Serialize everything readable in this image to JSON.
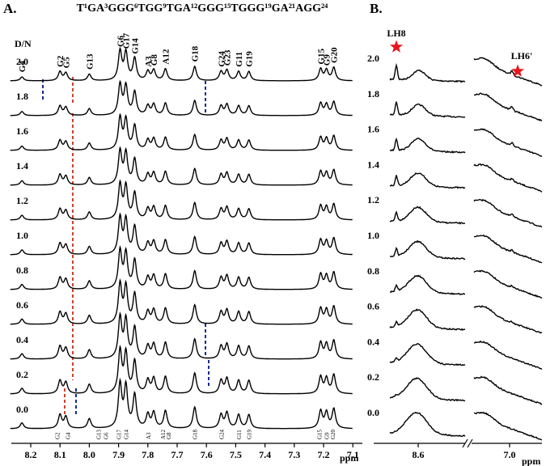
{
  "panels": [
    {
      "label": "A.",
      "title": "T¹GA³GGG⁶TGG⁹TGA¹²GGG¹⁵TGGG¹⁹GA²¹AGG²⁴",
      "dn_header": "D/N",
      "traces": [
        "2.0",
        "1.8",
        "1.6",
        "1.4",
        "1.2",
        "1.0",
        "0.8",
        "0.6",
        "0.4",
        "0.2",
        "0.0"
      ],
      "peaks": [
        {
          "label": "G4",
          "ppm": 8.23,
          "height": 6
        },
        {
          "label": "G2",
          "ppm": 8.1,
          "height": 14
        },
        {
          "label": "G5",
          "ppm": 8.08,
          "height": 12
        },
        {
          "label": "G13",
          "ppm": 8.0,
          "height": 10
        },
        {
          "label": "G6",
          "ppm": 7.895,
          "height": 45
        },
        {
          "label": "G17",
          "ppm": 7.875,
          "height": 42
        },
        {
          "label": "G14",
          "ppm": 7.845,
          "height": 34
        },
        {
          "label": "A3",
          "ppm": 7.8,
          "height": 14
        },
        {
          "label": "G8",
          "ppm": 7.78,
          "height": 16
        },
        {
          "label": "A12",
          "ppm": 7.74,
          "height": 18
        },
        {
          "label": "G18",
          "ppm": 7.64,
          "height": 22
        },
        {
          "label": "G24",
          "ppm": 7.55,
          "height": 14
        },
        {
          "label": "G23",
          "ppm": 7.53,
          "height": 16
        },
        {
          "label": "G11",
          "ppm": 7.49,
          "height": 14
        },
        {
          "label": "G19",
          "ppm": 7.455,
          "height": 14
        },
        {
          "label": "G15",
          "ppm": 7.21,
          "height": 18
        },
        {
          "label": "G9",
          "ppm": 7.19,
          "height": 16
        },
        {
          "label": "G20",
          "ppm": 7.165,
          "height": 20
        }
      ],
      "bottom_labels": [
        {
          "label": "G2",
          "ppm": 8.11
        },
        {
          "label": "G4",
          "ppm": 8.075
        },
        {
          "label": "G13",
          "ppm": 7.97
        },
        {
          "label": "G6",
          "ppm": 7.945
        },
        {
          "label": "G17",
          "ppm": 7.9
        },
        {
          "label": "G14",
          "ppm": 7.875
        },
        {
          "label": "A3",
          "ppm": 7.8
        },
        {
          "label": "A12",
          "ppm": 7.75
        },
        {
          "label": "G8",
          "ppm": 7.73
        },
        {
          "label": "G18",
          "ppm": 7.64
        },
        {
          "label": "G24",
          "ppm": 7.55
        },
        {
          "label": "G11",
          "ppm": 7.49
        },
        {
          "label": "G19",
          "ppm": 7.455
        },
        {
          "label": "G15",
          "ppm": 7.215
        },
        {
          "label": "G9",
          "ppm": 7.19
        },
        {
          "label": "G20",
          "ppm": 7.17
        }
      ],
      "xlim": [
        8.27,
        7.1
      ],
      "xticks": [
        8.2,
        8.1,
        {
          "value": 8.0,
          "label": "8.0"
        },
        7.9,
        7.8,
        7.7,
        7.6,
        7.5,
        7.4,
        7.3,
        7.2,
        7.1
      ],
      "x_unit": "ppm"
    },
    {
      "label": "B.",
      "traces": [
        "2.0",
        "1.8",
        "1.6",
        "1.4",
        "1.2",
        "1.0",
        "0.8",
        "0.6",
        "0.4",
        "0.2",
        "0.0"
      ],
      "markers": [
        "LH8",
        "LH6'"
      ],
      "xticks": [
        8.6,
        {
          "value": 7.0,
          "label": "7.0"
        }
      ],
      "x_unit": "ppm"
    }
  ]
}
